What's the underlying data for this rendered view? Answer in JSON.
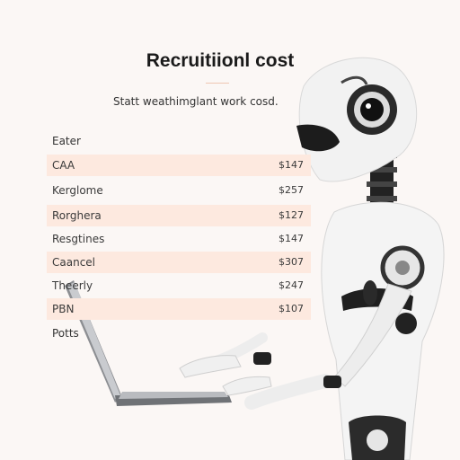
{
  "title": "Recruitiionl cost",
  "subtitle": "Statt weathimglant work cosd.",
  "list_header": "Eater",
  "rows": [
    {
      "label": "CAA",
      "value": "$147"
    },
    {
      "label": "Kerglome",
      "value": "$257"
    },
    {
      "label": "Rorghera",
      "value": "$127"
    },
    {
      "label": "Resgtines",
      "value": "$147"
    },
    {
      "label": "Caancel",
      "value": "$307"
    },
    {
      "label": "Theerly",
      "value": "$247"
    },
    {
      "label": "PBN",
      "value": "$107"
    }
  ],
  "footer_label": "Potts",
  "colors": {
    "row_shade": "#fde9df",
    "background": "#fbf7f5",
    "accent": "#efc7b3"
  }
}
